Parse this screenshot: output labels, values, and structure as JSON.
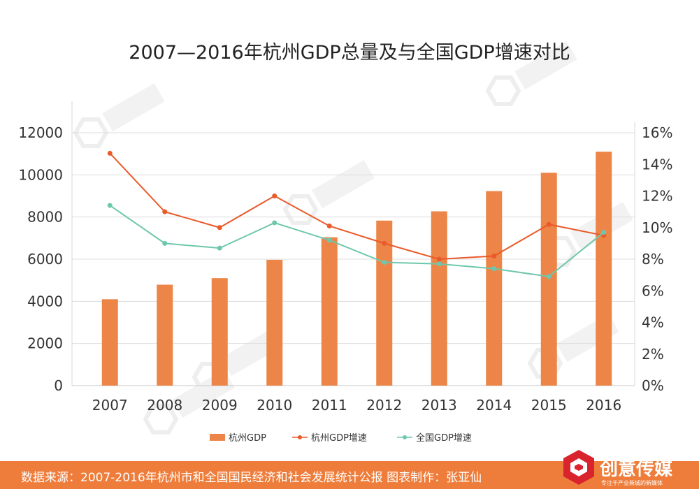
{
  "chart_data": {
    "type": "bar",
    "title": "2007—2016年杭州GDP总量及与全国GDP增速对比",
    "categories": [
      "2007",
      "2008",
      "2009",
      "2010",
      "2011",
      "2012",
      "2013",
      "2014",
      "2015",
      "2016"
    ],
    "series": [
      {
        "name": "杭州GDP",
        "kind": "bar",
        "axis": "left",
        "color": "#ec8547",
        "values": [
          4100,
          4790,
          5100,
          5970,
          7040,
          7830,
          8270,
          9230,
          10100,
          11100
        ]
      },
      {
        "name": "杭州GDP增速",
        "kind": "line",
        "axis": "right",
        "color": "#ea5a2a",
        "values": [
          14.7,
          11.0,
          10.0,
          12.0,
          10.1,
          9.0,
          8.0,
          8.2,
          10.2,
          9.5
        ]
      },
      {
        "name": "全国GDP增速",
        "kind": "line",
        "axis": "right",
        "color": "#6ec7ad",
        "values": [
          11.4,
          9.0,
          8.7,
          10.3,
          9.2,
          7.8,
          7.7,
          7.4,
          6.9,
          9.7
        ]
      }
    ],
    "left_axis": {
      "ylim": [
        0,
        12000
      ],
      "ticks": [
        "0",
        "2000",
        "4000",
        "6000",
        "8000",
        "10000",
        "12000"
      ]
    },
    "right_axis": {
      "ylim": [
        0,
        16
      ],
      "ticks": [
        "0%",
        "2%",
        "4%",
        "6%",
        "8%",
        "10%",
        "12%",
        "14%",
        "16%"
      ]
    },
    "legend_position": "bottom-center",
    "grid": true
  },
  "footer": {
    "source_text": "数据来源：2007-2016年杭州市和全国国民经济和社会发展统计公报  图表制作：张亚仙"
  },
  "brand": {
    "name": "创意传媒",
    "slogan": "专注于产业新城的新媒体"
  },
  "colors": {
    "accent": "#ee7d3b",
    "text": "#333333",
    "grid": "#dcdcdc",
    "watermark": "#eeeeee"
  }
}
